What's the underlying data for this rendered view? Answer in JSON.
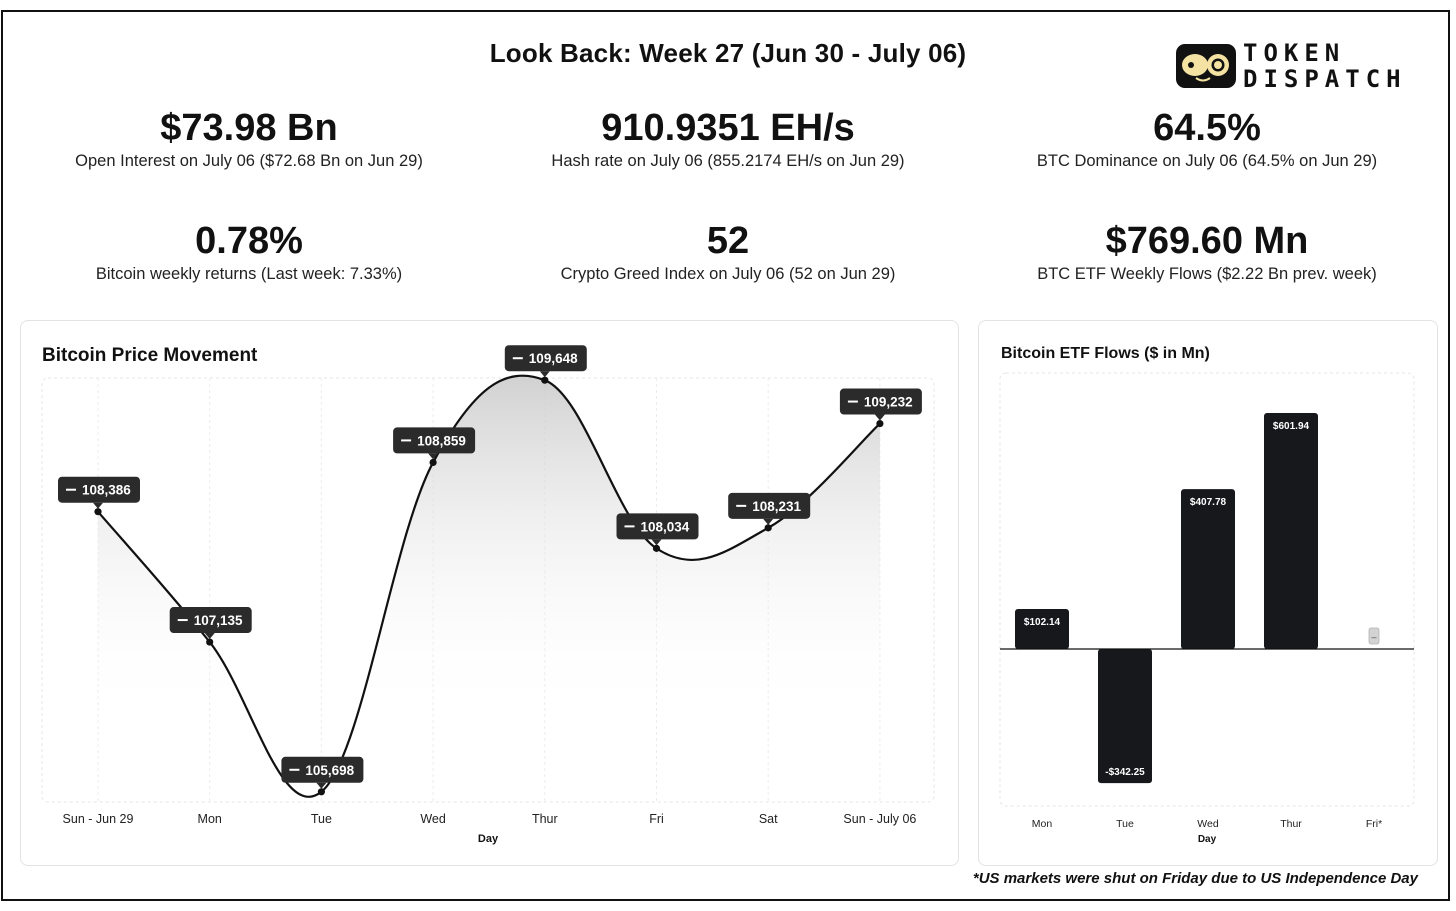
{
  "header": {
    "title": "Look Back: Week 27 (Jun 30 - July 06)",
    "logo_line1": "TOKEN",
    "logo_line2": "DISPATCH"
  },
  "stats": [
    {
      "value": "$73.98 Bn",
      "label": "Open Interest on July 06 ($72.68 Bn on Jun 29)"
    },
    {
      "value": "910.9351 EH/s",
      "label": "Hash rate on July 06 (855.2174 EH/s on Jun 29)"
    },
    {
      "value": "64.5%",
      "label": "BTC Dominance on July 06 (64.5% on Jun 29)"
    },
    {
      "value": "0.78%",
      "label": "Bitcoin weekly returns (Last week: 7.33%)"
    },
    {
      "value": "52",
      "label": "Crypto Greed Index on July 06 (52 on Jun 29)"
    },
    {
      "value": "$769.60 Mn",
      "label": "BTC ETF Weekly Flows ($2.22 Bn prev. week)"
    }
  ],
  "chart_data": [
    {
      "type": "line",
      "title": "Bitcoin Price Movement",
      "xlabel": "Day",
      "ylabel": "",
      "categories": [
        "Sun - Jun 29",
        "Mon",
        "Tue",
        "Wed",
        "Thur",
        "Fri",
        "Sat",
        "Sun - July 06"
      ],
      "values": [
        108386,
        107135,
        105698,
        108859,
        109648,
        108034,
        108231,
        109232
      ],
      "labels": [
        "108,386",
        "107,135",
        "105,698",
        "108,859",
        "109,648",
        "108,034",
        "108,231",
        "109,232"
      ],
      "ylim": [
        105600,
        109650
      ],
      "smooth": true,
      "grid": true,
      "area_fill": true,
      "line_color": "#111111"
    },
    {
      "type": "bar",
      "title": "Bitcoin ETF Flows ($ in Mn)",
      "xlabel": "Day",
      "ylabel": "",
      "categories": [
        "Mon",
        "Tue",
        "Wed",
        "Thur",
        "Fri*"
      ],
      "values": [
        102.14,
        -342.25,
        407.78,
        601.94,
        null
      ],
      "labels": [
        "$102.14",
        "-$342.25",
        "$407.78",
        "$601.94",
        "–"
      ],
      "ylim": [
        -400,
        620
      ],
      "bar_color": "#16181b"
    }
  ],
  "footnote": "*US markets were shut on Friday due to US Independence Day"
}
